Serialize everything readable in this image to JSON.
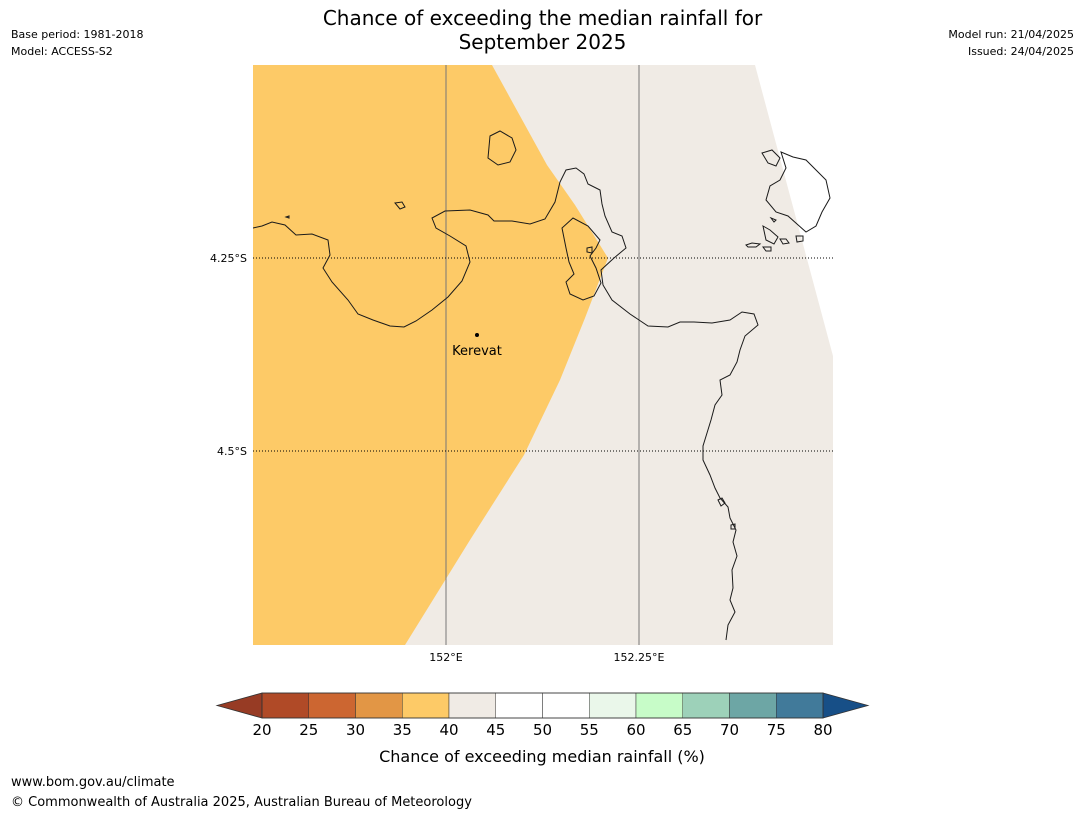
{
  "header": {
    "base_period": "Base period: 1981-2018",
    "model": "Model: ACCESS-S2",
    "model_run": "Model run: 21/04/2025",
    "issued": "Issued: 24/04/2025",
    "title_line1": "Chance of exceeding the median rainfall for",
    "title_line2": "September 2025"
  },
  "map": {
    "place_label": "Kerevat",
    "lat_labels": [
      "4.25°S",
      "4.5°S"
    ],
    "lon_labels": [
      "152°E",
      "152.25°E"
    ]
  },
  "colorbar": {
    "ticks": [
      "20",
      "25",
      "30",
      "35",
      "40",
      "45",
      "50",
      "55",
      "60",
      "65",
      "70",
      "75",
      "80"
    ],
    "colors": [
      "#b04a27",
      "#cc6631",
      "#e29645",
      "#fdca67",
      "#f0ebe5",
      "#ffffff",
      "#ffffff",
      "#eaf7ea",
      "#c7fcc8",
      "#9dd1b9",
      "#6da6a5",
      "#417a9a"
    ],
    "under_color": "#973b24",
    "over_color": "#174f87",
    "label": "Chance of exceeding median rainfall (%)"
  },
  "colors": {
    "band_35_40": "#fdca67",
    "band_40_45": "#f0ebe5",
    "land_outline": "#1a1a1a"
  },
  "footer": {
    "url": "www.bom.gov.au/climate",
    "copyright": "© Commonwealth of Australia 2025, Australian Bureau of Meteorology"
  }
}
